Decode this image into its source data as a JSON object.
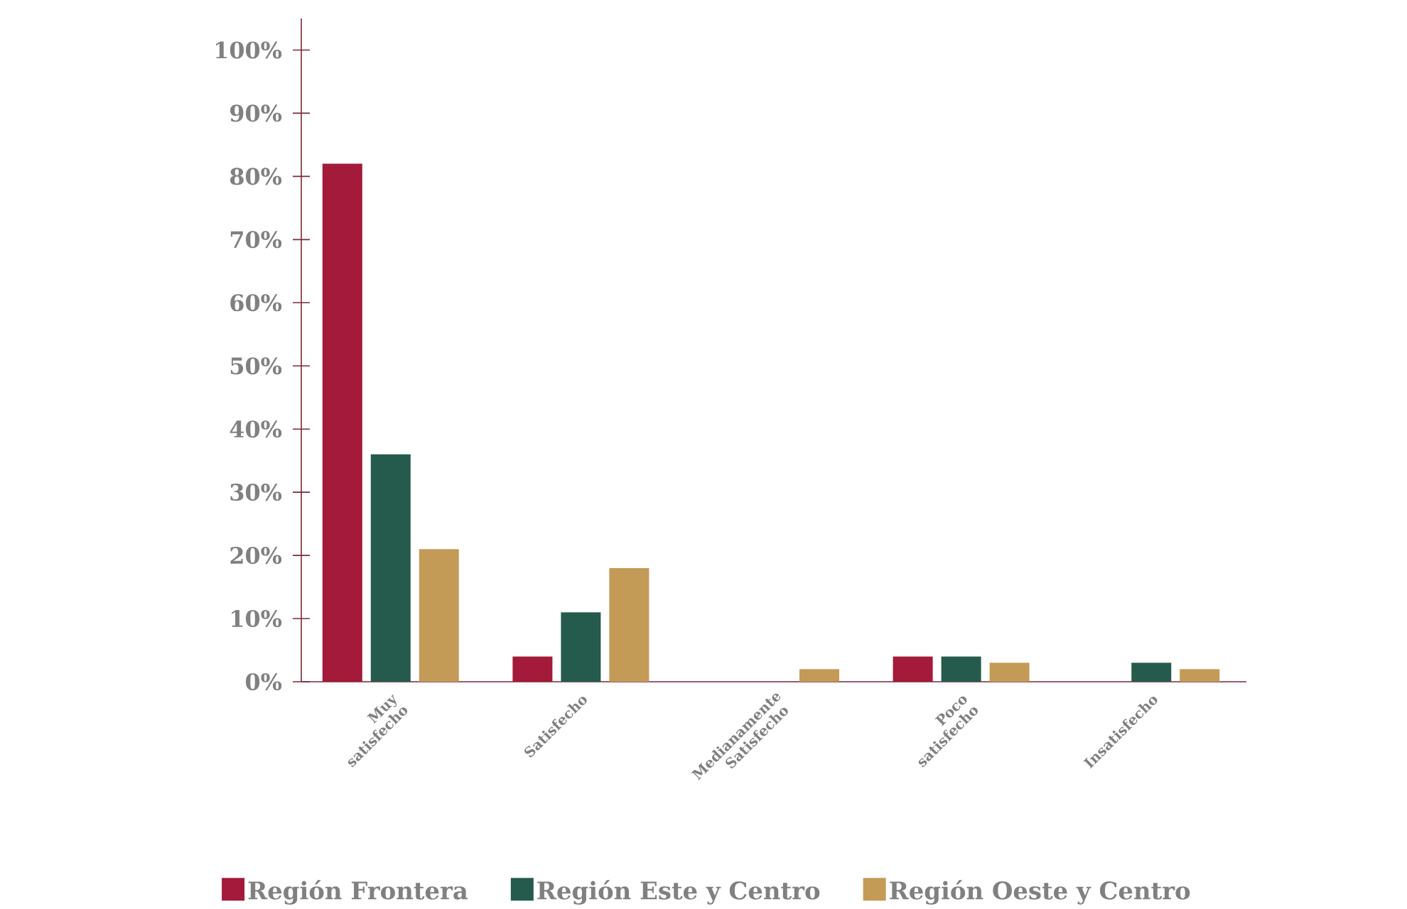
{
  "chart_data": {
    "type": "bar",
    "categories": [
      "Muy satisfecho",
      "Satisfecho",
      "Medianamente Satisfecho",
      "Poco satisfecho",
      "Insatisfecho"
    ],
    "series": [
      {
        "name": "Región Frontera",
        "color": "#a31a3a",
        "values": [
          82,
          4,
          0,
          4,
          0
        ]
      },
      {
        "name": "Región Este y Centro",
        "color": "#245b4c",
        "values": [
          36,
          11,
          0,
          4,
          3
        ]
      },
      {
        "name": "Región Oeste y Centro",
        "color": "#c49a57",
        "values": [
          21,
          18,
          2,
          3,
          2
        ]
      }
    ],
    "ylim": [
      0,
      105
    ],
    "yticks": [
      {
        "value": 0,
        "label": "0%"
      },
      {
        "value": 10,
        "label": "10%"
      },
      {
        "value": 20,
        "label": "20%"
      },
      {
        "value": 30,
        "label": "30%"
      },
      {
        "value": 40,
        "label": "40%"
      },
      {
        "value": 50,
        "label": "50%"
      },
      {
        "value": 60,
        "label": "60%"
      },
      {
        "value": 70,
        "label": "70%"
      },
      {
        "value": 80,
        "label": "80%"
      },
      {
        "value": 90,
        "label": "90%"
      },
      {
        "value": 100,
        "label": "100%"
      }
    ],
    "legend": "bottom"
  }
}
